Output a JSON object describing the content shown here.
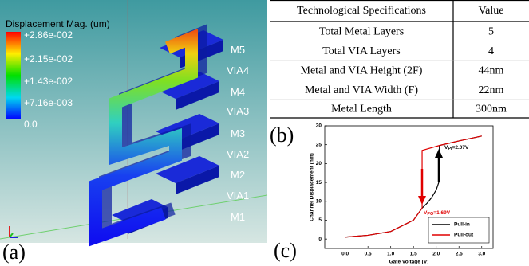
{
  "panel_a": {
    "label": "(a)",
    "colorbar": {
      "title": "Displacement Mag. (um)",
      "labels": [
        "+2.86e-002",
        "+2.15e-002",
        "+1.43e-002",
        "+7.16e-003",
        "0.0"
      ]
    },
    "layers": [
      "M5",
      "VIA4",
      "M4",
      "VIA3",
      "M3",
      "VIA2",
      "M2",
      "VIA1",
      "M1"
    ]
  },
  "table": {
    "label": "(b)",
    "header": [
      "Technological Specifications",
      "Value"
    ],
    "rows": [
      [
        "Total Metal Layers",
        "5"
      ],
      [
        "Total VIA Layers",
        "4"
      ],
      [
        "Metal and VIA Height (2F)",
        "44nm"
      ],
      [
        "Metal and VIA Width (F)",
        "22nm"
      ],
      [
        "Metal Length",
        "300nm"
      ]
    ]
  },
  "panel_c_label": "(c)",
  "chart_data": {
    "type": "line",
    "xlabel": "Gate Voltage (V)",
    "ylabel": "Channel Displacement (nm)",
    "xlim": [
      -0.45,
      3.25
    ],
    "ylim": [
      -2.5,
      30
    ],
    "xticks": [
      {
        "value": 0,
        "label": "0.0"
      },
      0.5,
      {
        "value": 1,
        "label": "1.0"
      },
      1.5,
      {
        "value": 2,
        "label": "2.0"
      },
      2.5,
      {
        "value": 3,
        "label": "3.0"
      }
    ],
    "yticks": [
      0,
      5,
      10,
      15,
      20,
      25,
      30
    ],
    "series": [
      {
        "name": "Pull-in",
        "color": "#000000",
        "x": [
          0,
          0.5,
          1.0,
          1.5,
          1.69,
          1.8,
          1.9,
          2.0,
          2.07,
          2.07,
          2.5,
          3.0
        ],
        "values": [
          0.5,
          1.0,
          2.0,
          5.0,
          8.2,
          9.5,
          11,
          13,
          15.5,
          24.8,
          26,
          27.3
        ]
      },
      {
        "name": "Pull-out",
        "color": "#e00000",
        "x": [
          0,
          0.5,
          1.0,
          1.5,
          1.69,
          1.69,
          2.07,
          2.5,
          3.0
        ],
        "values": [
          0.5,
          1.0,
          2.0,
          5.0,
          8.2,
          23.5,
          24.8,
          26,
          27.3
        ]
      }
    ],
    "annotations": [
      {
        "text": "V",
        "sub": "PI",
        "suffix": "=2.07V",
        "color": "#000000"
      },
      {
        "text": "V",
        "sub": "PO",
        "suffix": "=1.69V",
        "color": "#e00000"
      }
    ]
  }
}
